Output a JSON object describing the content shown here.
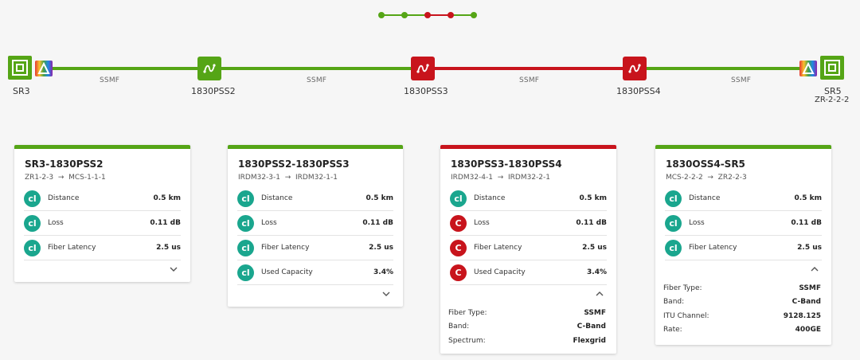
{
  "colors": {
    "ok": "#55a516",
    "alarm": "#c8141c",
    "teal": "#1aa68e"
  },
  "nodes": [
    {
      "id": "sr3",
      "label": "SR3",
      "type": "router",
      "status": "ok"
    },
    {
      "id": "pss2",
      "label": "1830PSS2",
      "type": "photonic",
      "status": "ok"
    },
    {
      "id": "pss3",
      "label": "1830PSS3",
      "type": "photonic",
      "status": "alarm"
    },
    {
      "id": "pss4",
      "label": "1830PSS4",
      "type": "photonic",
      "status": "alarm"
    },
    {
      "id": "sr5",
      "label": "SR5",
      "sublabel": "ZR-2-2-2",
      "type": "router",
      "status": "ok"
    }
  ],
  "links": [
    {
      "label": "SSMF",
      "status": "ok"
    },
    {
      "label": "SSMF",
      "status": "ok"
    },
    {
      "label": "SSMF",
      "status": "alarm"
    },
    {
      "label": "SSMF",
      "status": "ok"
    }
  ],
  "cards": [
    {
      "title": "SR3-1830PSS2",
      "from": "ZR1-2-3",
      "to": "MCS-1-1-1",
      "status": "ok",
      "rows": [
        {
          "badge": "cl",
          "name": "Distance",
          "value": "0.5 km"
        },
        {
          "badge": "cl",
          "name": "Loss",
          "value": "0.11 dB"
        },
        {
          "badge": "cl",
          "name": "Fiber Latency",
          "value": "2.5 us"
        }
      ],
      "expanded": false
    },
    {
      "title": "1830PSS2-1830PSS3",
      "from": "IRDM32-3-1",
      "to": "IRDM32-1-1",
      "status": "ok",
      "rows": [
        {
          "badge": "cl",
          "name": "Distance",
          "value": "0.5 km"
        },
        {
          "badge": "cl",
          "name": "Loss",
          "value": "0.11 dB"
        },
        {
          "badge": "cl",
          "name": "Fiber Latency",
          "value": "2.5 us"
        },
        {
          "badge": "cl",
          "name": "Used Capacity",
          "value": "3.4%"
        }
      ],
      "expanded": false
    },
    {
      "title": "1830PSS3-1830PSS4",
      "from": "IRDM32-4-1",
      "to": "IRDM32-2-1",
      "status": "alarm",
      "rows": [
        {
          "badge": "cl",
          "name": "Distance",
          "value": "0.5 km"
        },
        {
          "badge": "C",
          "name": "Loss",
          "value": "0.11 dB"
        },
        {
          "badge": "C",
          "name": "Fiber Latency",
          "value": "2.5 us"
        },
        {
          "badge": "C",
          "name": "Used Capacity",
          "value": "3.4%"
        }
      ],
      "expanded": true,
      "details": [
        {
          "label": "Fiber Type:",
          "value": "SSMF"
        },
        {
          "label": "Band:",
          "value": "C-Band"
        },
        {
          "label": "Spectrum:",
          "value": "Flexgrid"
        }
      ]
    },
    {
      "title": "1830OSS4-SR5",
      "from": "MCS-2-2-2",
      "to": "ZR2-2-3",
      "status": "ok",
      "rows": [
        {
          "badge": "cl",
          "name": "Distance",
          "value": "0.5 km"
        },
        {
          "badge": "cl",
          "name": "Loss",
          "value": "0.11 dB"
        },
        {
          "badge": "cl",
          "name": "Fiber Latency",
          "value": "2.5 us"
        }
      ],
      "expanded": true,
      "details": [
        {
          "label": "Fiber Type:",
          "value": "SSMF"
        },
        {
          "label": "Band:",
          "value": "C-Band"
        },
        {
          "label": "ITU Channel:",
          "value": "9128.125"
        },
        {
          "label": "Rate:",
          "value": "400GE"
        }
      ]
    }
  ]
}
